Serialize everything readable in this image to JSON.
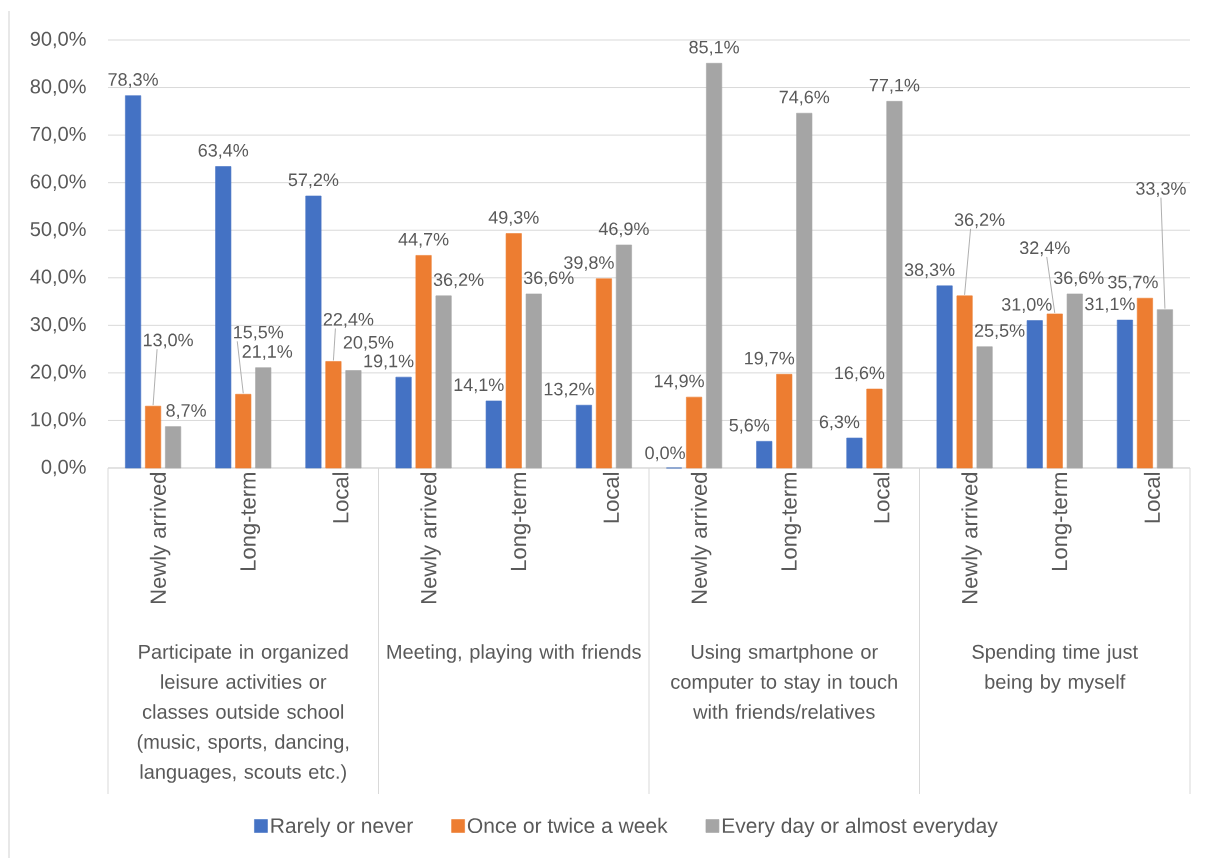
{
  "chart_data": {
    "type": "bar",
    "categories": [
      "Newly arrived",
      "Long-term",
      "Local",
      "Newly arrived",
      "Long-term",
      "Local",
      "Newly arrived",
      "Long-term",
      "Local",
      "Newly arrived",
      "Long-term",
      "Local"
    ],
    "series": [
      {
        "name": "Rarely or never",
        "color": "#4472c4",
        "values": [
          78.3,
          63.4,
          57.2,
          19.1,
          14.1,
          13.2,
          0.0,
          5.6,
          6.3,
          38.3,
          31.0,
          31.1
        ],
        "value_labels": [
          "78,3%",
          "63,4%",
          "57,2%",
          "19,1%",
          "14,1%",
          "13,2%",
          "0,0%",
          "5,6%",
          "6,3%",
          "38,3%",
          "31,0%",
          "31,1%"
        ]
      },
      {
        "name": "Once or twice a week",
        "color": "#ed7d31",
        "values": [
          13.0,
          15.5,
          22.4,
          44.7,
          49.3,
          39.8,
          14.9,
          19.7,
          16.6,
          36.2,
          32.4,
          35.7
        ],
        "value_labels": [
          "13,0%",
          "15,5%",
          "22,4%",
          "44,7%",
          "49,3%",
          "39,8%",
          "14,9%",
          "19,7%",
          "16,6%",
          "36,2%",
          "32,4%",
          "35,7%"
        ]
      },
      {
        "name": "Every day or almost everyday",
        "color": "#a5a5a5",
        "values": [
          8.7,
          21.1,
          20.5,
          36.2,
          36.6,
          46.9,
          85.1,
          74.6,
          77.1,
          25.5,
          36.6,
          33.3
        ],
        "value_labels": [
          "8,7%",
          "21,1%",
          "20,5%",
          "36,2%",
          "36,6%",
          "46,9%",
          "85,1%",
          "74,6%",
          "77,1%",
          "25,5%",
          "36,6%",
          "33,3%"
        ]
      }
    ],
    "ylim": [
      0,
      90
    ],
    "yticks": [
      {
        "value": 0,
        "label": "0,0%"
      },
      {
        "value": 10,
        "label": "10,0%"
      },
      {
        "value": 20,
        "label": "20,0%"
      },
      {
        "value": 30,
        "label": "30,0%"
      },
      {
        "value": 40,
        "label": "40,0%"
      },
      {
        "value": 50,
        "label": "50,0%"
      },
      {
        "value": 60,
        "label": "60,0%"
      },
      {
        "value": 70,
        "label": "70,0%"
      },
      {
        "value": 80,
        "label": "80,0%"
      },
      {
        "value": 90,
        "label": "90,0%"
      }
    ],
    "grid": "y",
    "legend": "bottom",
    "annotations": [
      "Participate in organized leisure activities or classes outside school (music, sports, dancing, languages, scouts etc.)",
      "Meeting, playing with friends",
      "Using smartphone or computer to stay in touch with friends/relatives",
      "Spending time just being by myself"
    ]
  }
}
